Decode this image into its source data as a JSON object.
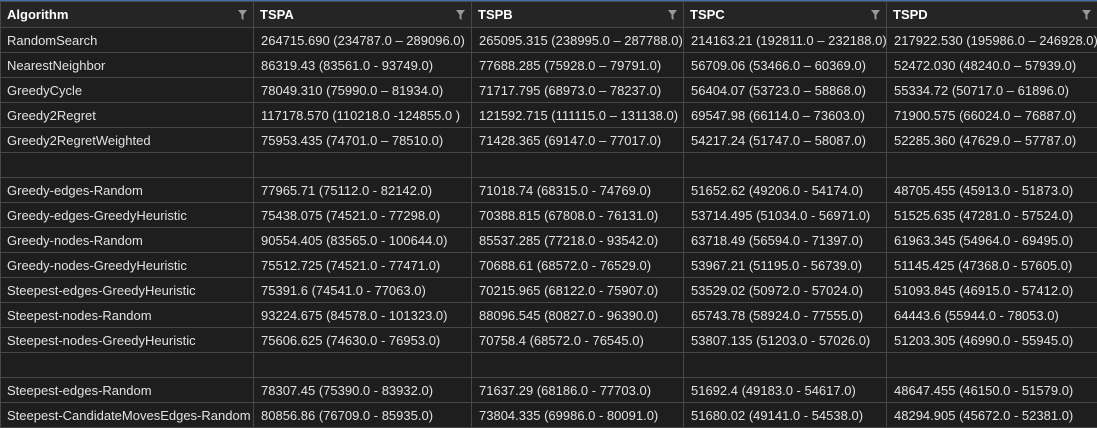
{
  "columns": [
    {
      "label": "Algorithm",
      "filter_icon": "filter-icon"
    },
    {
      "label": "TSPA",
      "filter_icon": "filter-icon"
    },
    {
      "label": "TSPB",
      "filter_icon": "filter-icon"
    },
    {
      "label": "TSPC",
      "filter_icon": "filter-icon"
    },
    {
      "label": "TSPD",
      "filter_icon": "filter-icon"
    }
  ],
  "rows": [
    [
      "RandomSearch",
      " 264715.690 (234787.0 – 289096.0)",
      " 265095.315 (238995.0 – 287788.0)",
      "214163.21 (192811.0 – 232188.0)",
      "217922.530 (195986.0 – 246928.0)"
    ],
    [
      "NearestNeighbor",
      "86319.43 (83561.0 - 93749.0)",
      "77688.285 (75928.0 – 79791.0)",
      "56709.06 (53466.0 – 60369.0)",
      "52472.030 (48240.0 – 57939.0)"
    ],
    [
      "GreedyCycle",
      "78049.310 (75990.0 – 81934.0)",
      "71717.795 (68973.0 – 78237.0)",
      "56404.07 (53723.0 – 58868.0)",
      "55334.72 (50717.0 – 61896.0)"
    ],
    [
      "Greedy2Regret",
      "117178.570 (110218.0 -124855.0 )",
      "121592.715 (111115.0 – 131138.0)",
      "69547.98 (66114.0 – 73603.0)",
      "71900.575 (66024.0 – 76887.0)"
    ],
    [
      "Greedy2RegretWeighted",
      "75953.435 (74701.0 – 78510.0)",
      "71428.365 (69147.0 – 77017.0)",
      "54217.24 (51747.0 – 58087.0)",
      "52285.360 (47629.0 – 57787.0)"
    ],
    [
      "",
      "",
      "",
      "",
      ""
    ],
    [
      "Greedy-edges-Random",
      "77965.71 (75112.0 - 82142.0)",
      "71018.74 (68315.0 - 74769.0)",
      "51652.62 (49206.0 - 54174.0)",
      "48705.455 (45913.0 - 51873.0)"
    ],
    [
      "Greedy-edges-GreedyHeuristic",
      "75438.075 (74521.0 - 77298.0)",
      "70388.815 (67808.0 - 76131.0)",
      "53714.495 (51034.0 - 56971.0)",
      "51525.635 (47281.0 - 57524.0)"
    ],
    [
      "Greedy-nodes-Random",
      "90554.405 (83565.0 - 100644.0)",
      "85537.285 (77218.0 - 93542.0)",
      "63718.49 (56594.0 - 71397.0)",
      "61963.345 (54964.0 - 69495.0)"
    ],
    [
      "Greedy-nodes-GreedyHeuristic",
      "75512.725 (74521.0 - 77471.0)",
      "70688.61 (68572.0 - 76529.0)",
      "53967.21 (51195.0 - 56739.0)",
      "51145.425 (47368.0 - 57605.0)"
    ],
    [
      "Steepest-edges-GreedyHeuristic",
      "75391.6 (74541.0 - 77063.0)",
      "70215.965 (68122.0 - 75907.0)",
      "53529.02 (50972.0 - 57024.0)",
      "51093.845 (46915.0 - 57412.0)"
    ],
    [
      "Steepest-nodes-Random",
      "93224.675 (84578.0 - 101323.0)",
      "88096.545 (80827.0 - 96390.0)",
      "65743.78 (58924.0 - 77555.0)",
      "64443.6 (55944.0 - 78053.0)"
    ],
    [
      "Steepest-nodes-GreedyHeuristic",
      "75606.625 (74630.0 - 76953.0)",
      "70758.4 (68572.0 - 76545.0)",
      "53807.135 (51203.0 - 57026.0)",
      "51203.305 (46990.0 - 55945.0)"
    ],
    [
      "",
      "",
      "",
      "",
      ""
    ],
    [
      "Steepest-edges-Random",
      "78307.45 (75390.0 - 83932.0)",
      "71637.29 (68186.0 - 77703.0)",
      "51692.4 (49183.0 - 54617.0)",
      "48647.455 (46150.0 - 51579.0)"
    ],
    [
      "Steepest-CandidateMovesEdges-Random",
      "80856.86 (76709.0 - 85935.0)",
      "73804.335 (69986.0 - 80091.0)",
      "51680.02 (49141.0 - 54538.0)",
      "48294.905 (45672.0 - 52381.0)"
    ]
  ],
  "colors": {
    "background": "#1e1e1e",
    "header_background": "#252526",
    "grid_line": "#474747",
    "accent_top": "#3f6fb0",
    "text": "#e2e2e2"
  }
}
